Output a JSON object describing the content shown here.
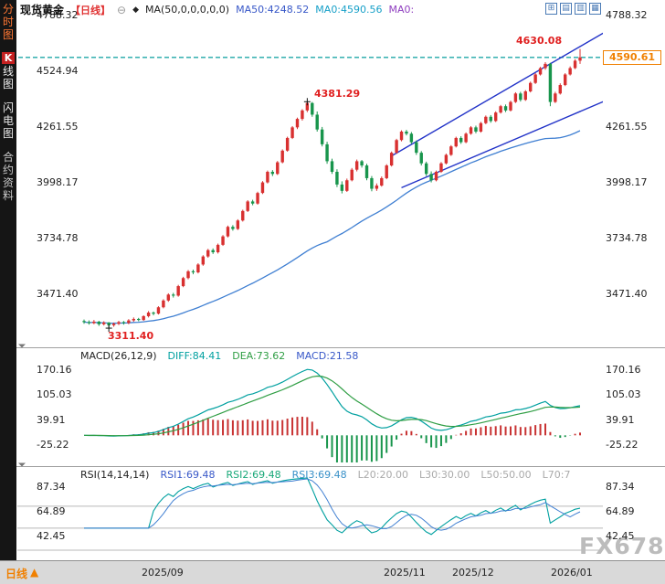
{
  "sidebar": {
    "tab_time": "分时图",
    "tab_k_first": "K",
    "tab_k_rest": "线图",
    "tab_lightning": "闪电图",
    "tab_contract": "合约资料"
  },
  "header": {
    "symbol": "现货黄金",
    "period": "【日线】",
    "minus_icon": "⊖",
    "diamond_icon": "◆",
    "ma_settings": "MA(50,0,0,0,0,0)",
    "ma50": "MA50:4248.52",
    "ma0a": "MA0:4590.56",
    "ma0b": "MA0:",
    "window_icons": [
      "⊞",
      "▤",
      "▥",
      "▦"
    ]
  },
  "annotations": {
    "high_text": "4630.08",
    "peak_text": "4381.29",
    "low_text": "3311.40",
    "last_price_text": "4590.61"
  },
  "macd_header": {
    "name": "MACD(26,12,9)",
    "diff": "DIFF:84.41",
    "dea": "DEA:73.62",
    "macd": "MACD:21.58"
  },
  "rsi_header": {
    "name": "RSI(14,14,14)",
    "rsi1": "RSI1:69.48",
    "rsi2": "RSI2:69.48",
    "rsi3": "RSI3:69.48",
    "l20": "L20:20.00",
    "l30": "L30:30.00",
    "l50": "L50:50.00",
    "l70": "L70:7"
  },
  "bottom": {
    "period_tab": "日线",
    "period_arrow": "▲"
  },
  "watermark": "FX678",
  "chart_data": {
    "type": "candlestick",
    "symbol": "现货黄金",
    "period": "日线",
    "last_price": 4590.61,
    "y_axis_main": [
      4788.32,
      4524.94,
      4261.55,
      3998.17,
      3734.78,
      3471.4
    ],
    "x_axis_dates": [
      "2025/09",
      "2025/11",
      "2025/12",
      "2026/01"
    ],
    "ma": {
      "window": 50,
      "ma50_last": 4248.52,
      "ma0_last": 4590.56
    },
    "annotations": {
      "high": {
        "index": 100,
        "price": 4630.08
      },
      "peak": {
        "index": 45,
        "price": 4381.29
      },
      "low": {
        "index": 5,
        "price": 3311.4
      }
    },
    "trendlines": [
      {
        "i1": 62,
        "p1": 4125,
        "i2": 105,
        "p2": 4710
      },
      {
        "i1": 64,
        "p1": 3975,
        "i2": 105,
        "p2": 4385
      }
    ],
    "indicators": {
      "macd": {
        "label": "MACD(26,12,9)",
        "diff": 84.41,
        "dea": 73.62,
        "macd": 21.58,
        "axis": [
          170.16,
          105.03,
          39.91,
          -25.22
        ]
      },
      "rsi": {
        "label": "RSI(14,14,14)",
        "rsi1": 69.48,
        "rsi2": 69.48,
        "rsi3": 69.48,
        "levels": [
          20,
          30,
          50,
          70
        ],
        "axis": [
          87.34,
          64.89,
          42.45
        ]
      }
    },
    "candles": [
      [
        3345,
        3352,
        3332,
        3340
      ],
      [
        3340,
        3348,
        3328,
        3335
      ],
      [
        3335,
        3350,
        3330,
        3342
      ],
      [
        3342,
        3346,
        3322,
        3330
      ],
      [
        3330,
        3344,
        3324,
        3338
      ],
      [
        3338,
        3340,
        3311.4,
        3325
      ],
      [
        3325,
        3338,
        3318,
        3332
      ],
      [
        3332,
        3346,
        3326,
        3340
      ],
      [
        3340,
        3345,
        3328,
        3336
      ],
      [
        3336,
        3354,
        3330,
        3348
      ],
      [
        3348,
        3362,
        3342,
        3355
      ],
      [
        3355,
        3360,
        3344,
        3350
      ],
      [
        3350,
        3372,
        3346,
        3368
      ],
      [
        3368,
        3392,
        3362,
        3385
      ],
      [
        3385,
        3390,
        3372,
        3380
      ],
      [
        3380,
        3415,
        3376,
        3410
      ],
      [
        3410,
        3448,
        3405,
        3442
      ],
      [
        3442,
        3476,
        3436,
        3470
      ],
      [
        3470,
        3478,
        3456,
        3465
      ],
      [
        3465,
        3516,
        3460,
        3510
      ],
      [
        3510,
        3554,
        3505,
        3548
      ],
      [
        3548,
        3586,
        3542,
        3580
      ],
      [
        3580,
        3588,
        3566,
        3575
      ],
      [
        3575,
        3618,
        3570,
        3612
      ],
      [
        3612,
        3656,
        3606,
        3650
      ],
      [
        3650,
        3686,
        3644,
        3680
      ],
      [
        3680,
        3688,
        3662,
        3670
      ],
      [
        3670,
        3711,
        3664,
        3705
      ],
      [
        3705,
        3751,
        3700,
        3745
      ],
      [
        3745,
        3796,
        3740,
        3790
      ],
      [
        3790,
        3798,
        3772,
        3780
      ],
      [
        3780,
        3826,
        3775,
        3820
      ],
      [
        3820,
        3871,
        3815,
        3865
      ],
      [
        3865,
        3916,
        3860,
        3910
      ],
      [
        3910,
        3918,
        3892,
        3900
      ],
      [
        3900,
        3956,
        3895,
        3950
      ],
      [
        3950,
        4006,
        3945,
        4000
      ],
      [
        4000,
        4056,
        3995,
        4050
      ],
      [
        4050,
        4058,
        4030,
        4040
      ],
      [
        4040,
        4101,
        4035,
        4095
      ],
      [
        4095,
        4156,
        4090,
        4150
      ],
      [
        4150,
        4216,
        4145,
        4210
      ],
      [
        4210,
        4266,
        4205,
        4260
      ],
      [
        4260,
        4306,
        4252,
        4300
      ],
      [
        4300,
        4346,
        4292,
        4340
      ],
      [
        4340,
        4381.3,
        4332,
        4375
      ],
      [
        4375,
        4380,
        4310,
        4320
      ],
      [
        4320,
        4335,
        4240,
        4250
      ],
      [
        4250,
        4262,
        4170,
        4180
      ],
      [
        4180,
        4192,
        4088,
        4100
      ],
      [
        4100,
        4112,
        4040,
        4050
      ],
      [
        4050,
        4062,
        3978,
        3990
      ],
      [
        3990,
        4005,
        3948,
        3960
      ],
      [
        3960,
        4018,
        3955,
        4010
      ],
      [
        4010,
        4068,
        4005,
        4060
      ],
      [
        4060,
        4108,
        4052,
        4100
      ],
      [
        4100,
        4106,
        4070,
        4080
      ],
      [
        4080,
        4088,
        4010,
        4020
      ],
      [
        4020,
        4030,
        3958,
        3970
      ],
      [
        3970,
        3995,
        3960,
        3985
      ],
      [
        3985,
        4028,
        3980,
        4020
      ],
      [
        4020,
        4086,
        4015,
        4080
      ],
      [
        4080,
        4146,
        4075,
        4140
      ],
      [
        4140,
        4206,
        4135,
        4200
      ],
      [
        4200,
        4246,
        4194,
        4240
      ],
      [
        4240,
        4248,
        4222,
        4230
      ],
      [
        4230,
        4238,
        4182,
        4190
      ],
      [
        4190,
        4198,
        4130,
        4140
      ],
      [
        4140,
        4148,
        4080,
        4090
      ],
      [
        4090,
        4098,
        4030,
        4040
      ],
      [
        4040,
        4052,
        4000,
        4010
      ],
      [
        4010,
        4056,
        4005,
        4050
      ],
      [
        4050,
        4096,
        4045,
        4090
      ],
      [
        4090,
        4136,
        4085,
        4130
      ],
      [
        4130,
        4176,
        4125,
        4170
      ],
      [
        4170,
        4216,
        4165,
        4210
      ],
      [
        4210,
        4218,
        4182,
        4190
      ],
      [
        4190,
        4236,
        4185,
        4230
      ],
      [
        4230,
        4266,
        4225,
        4260
      ],
      [
        4260,
        4268,
        4232,
        4240
      ],
      [
        4240,
        4286,
        4235,
        4280
      ],
      [
        4280,
        4316,
        4275,
        4310
      ],
      [
        4310,
        4318,
        4282,
        4290
      ],
      [
        4290,
        4336,
        4285,
        4330
      ],
      [
        4330,
        4366,
        4325,
        4360
      ],
      [
        4360,
        4368,
        4332,
        4340
      ],
      [
        4340,
        4386,
        4335,
        4380
      ],
      [
        4380,
        4426,
        4375,
        4420
      ],
      [
        4420,
        4428,
        4382,
        4390
      ],
      [
        4390,
        4436,
        4385,
        4430
      ],
      [
        4430,
        4476,
        4425,
        4470
      ],
      [
        4470,
        4516,
        4465,
        4510
      ],
      [
        4510,
        4546,
        4505,
        4540
      ],
      [
        4540,
        4568,
        4532,
        4560
      ],
      [
        4560,
        4565,
        4360,
        4380
      ],
      [
        4380,
        4428,
        4375,
        4420
      ],
      [
        4420,
        4468,
        4415,
        4460
      ],
      [
        4460,
        4516,
        4455,
        4510
      ],
      [
        4510,
        4548,
        4505,
        4540
      ],
      [
        4540,
        4582,
        4535,
        4575
      ],
      [
        4575,
        4630.1,
        4560,
        4590.6
      ]
    ]
  }
}
